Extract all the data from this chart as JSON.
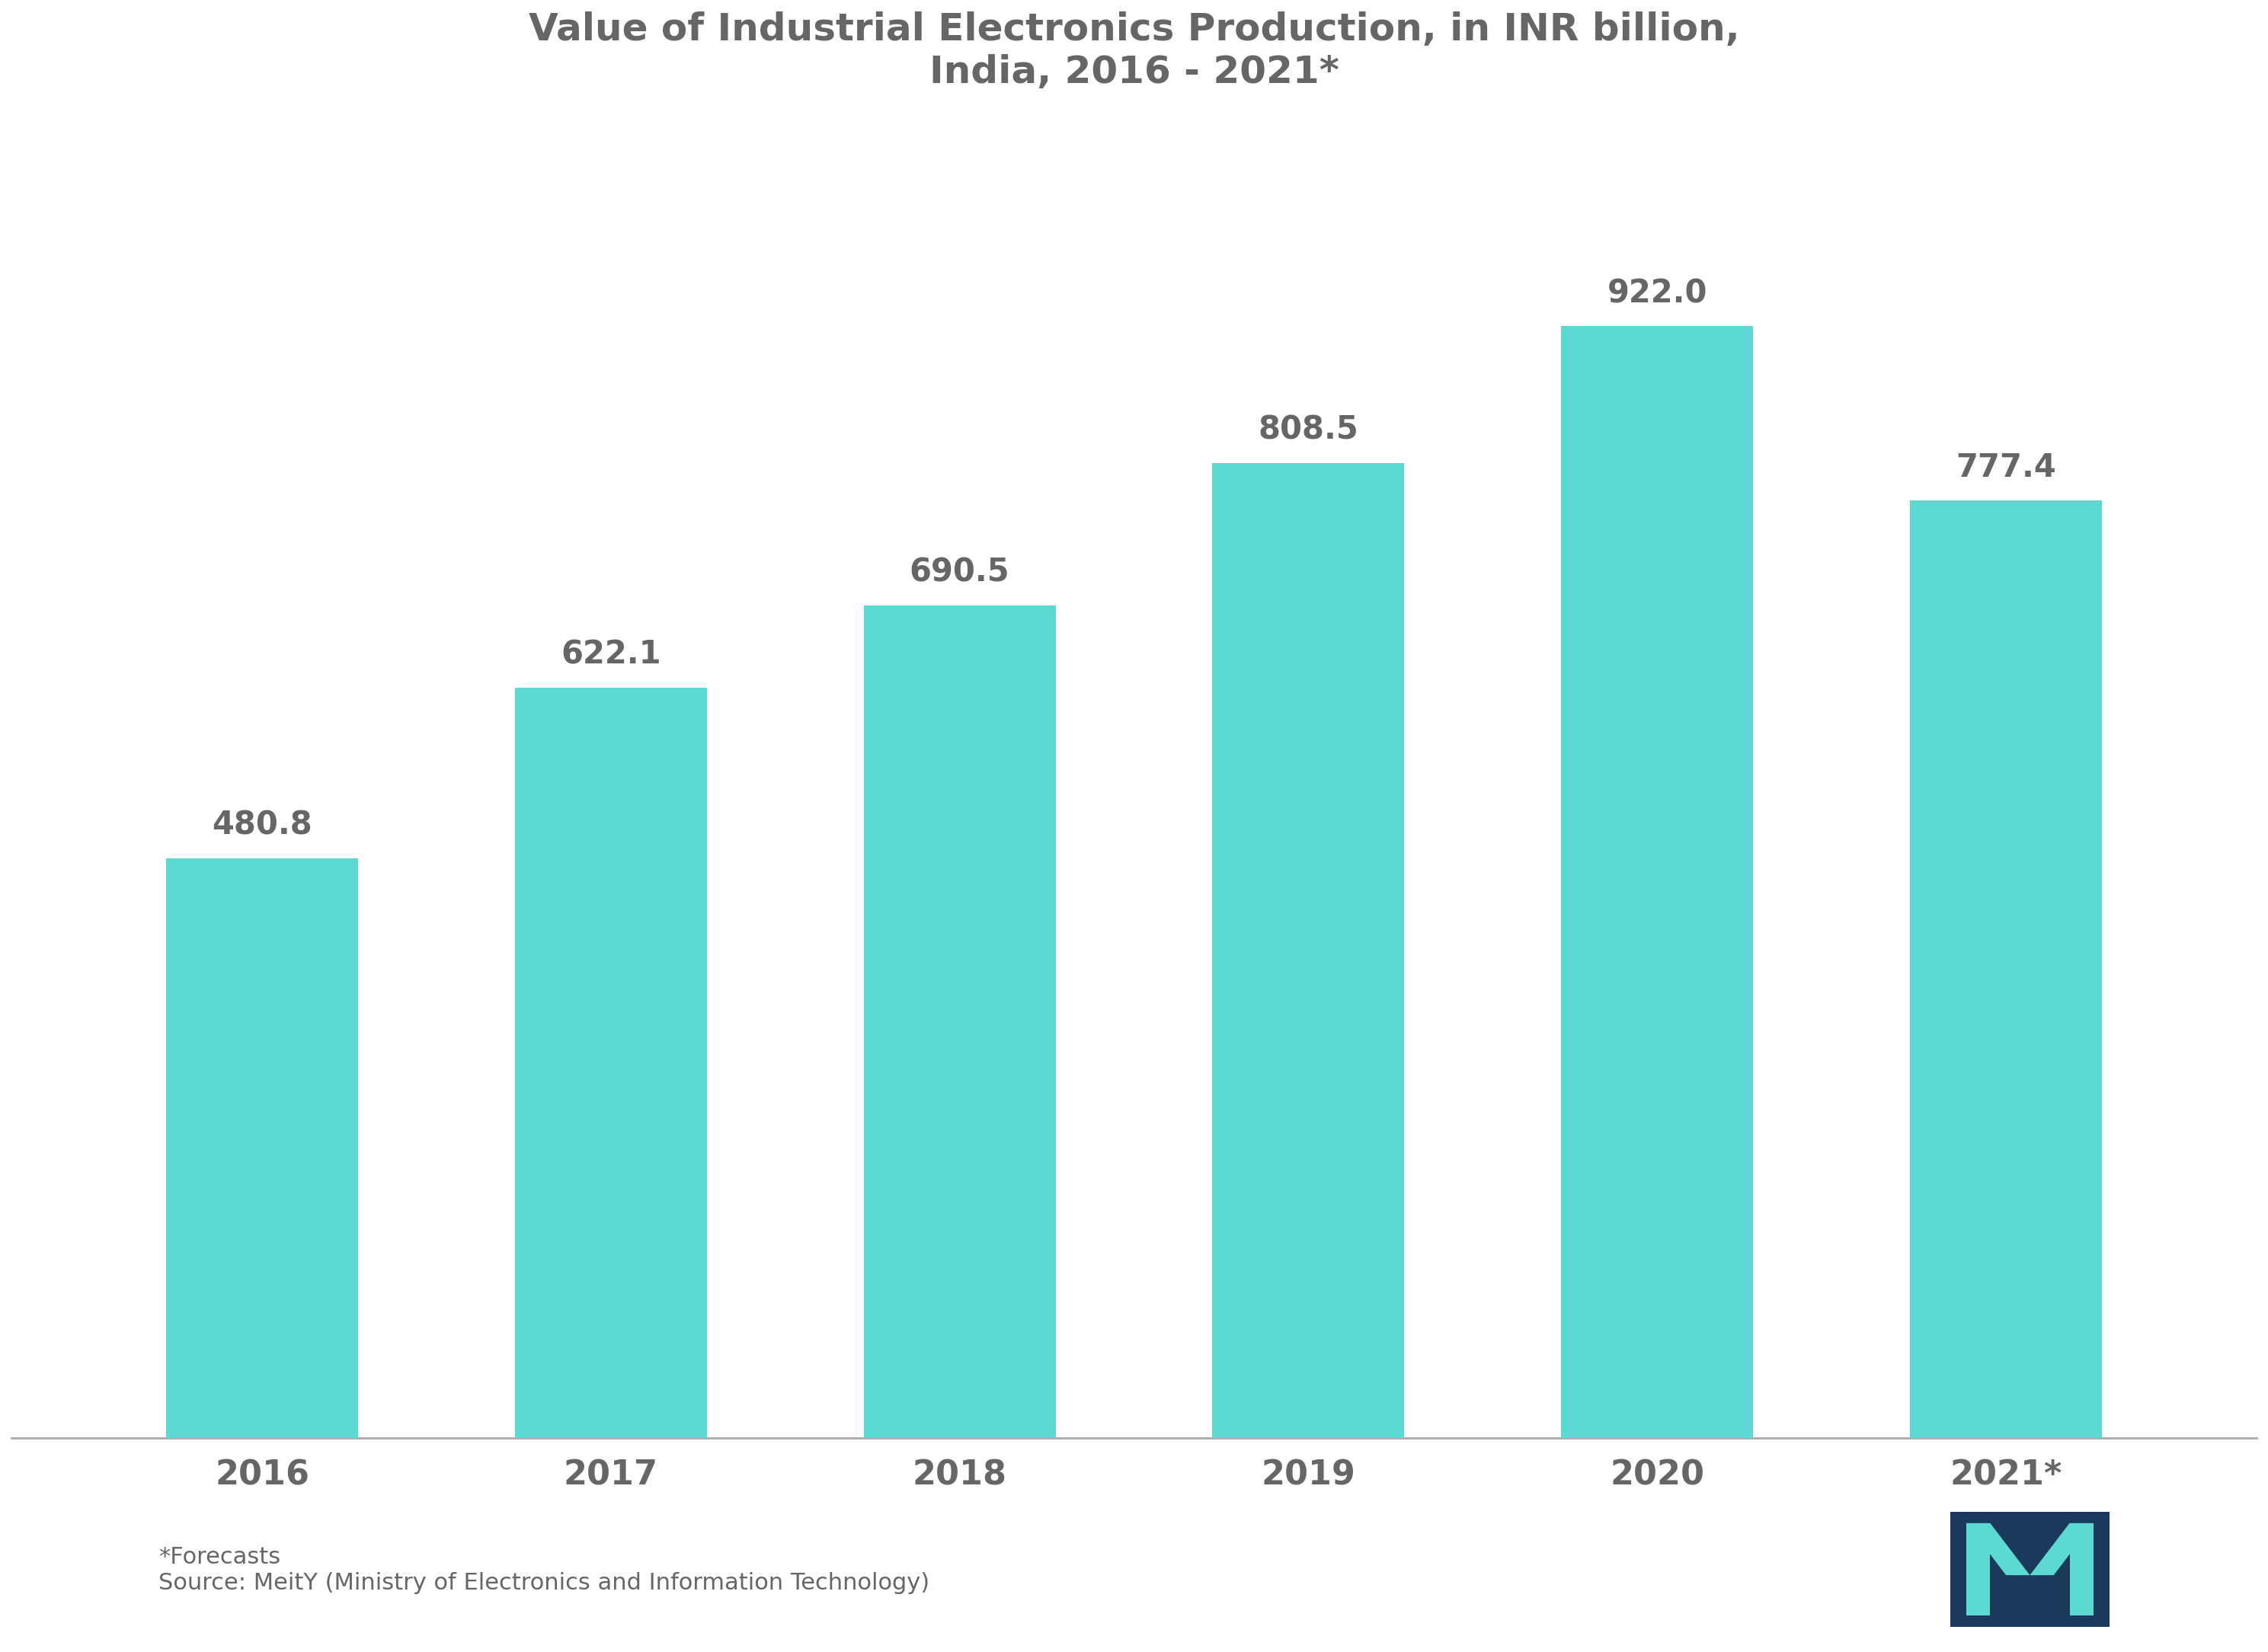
{
  "title_line1": "Value of Industrial Electronics Production, in INR billion,",
  "title_line2": "India, 2016 - 2021*",
  "categories": [
    "2016",
    "2017",
    "2018",
    "2019",
    "2020",
    "2021*"
  ],
  "values": [
    480.8,
    622.1,
    690.5,
    808.5,
    922.0,
    777.4
  ],
  "bar_color": "#5DD9D4",
  "background_color": "#ffffff",
  "title_color": "#666666",
  "label_color": "#666666",
  "tick_color": "#666666",
  "footnote_line1": "*Forecasts",
  "footnote_line2": "Source: MeitY (Ministry of Electronics and Information Technology)",
  "ylim": [
    0,
    1080
  ],
  "bar_width": 0.55
}
